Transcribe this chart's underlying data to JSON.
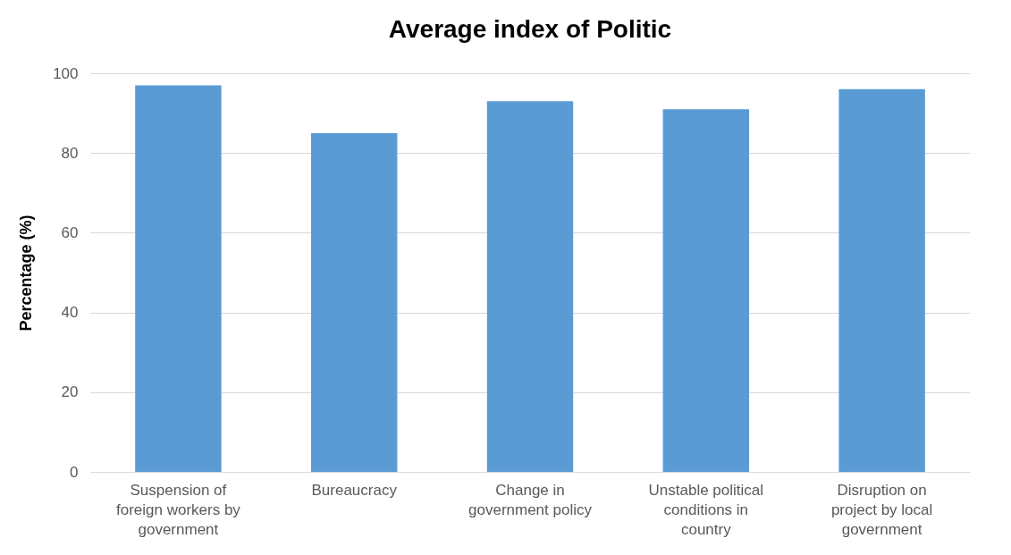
{
  "chart_data": {
    "type": "bar",
    "title": "Average index of Politic",
    "ylabel": "Percentage (%)",
    "categories": [
      "Suspension of foreign workers by government",
      "Bureaucracy",
      "Change in government policy",
      "Unstable political conditions in country",
      "Disruption on project by local government"
    ],
    "values": [
      97,
      85,
      93,
      91,
      96
    ],
    "color": "#5b9bd5",
    "ylim": [
      0,
      100
    ],
    "yticks": [
      0,
      20,
      40,
      60,
      80,
      100
    ],
    "grid": "y"
  }
}
